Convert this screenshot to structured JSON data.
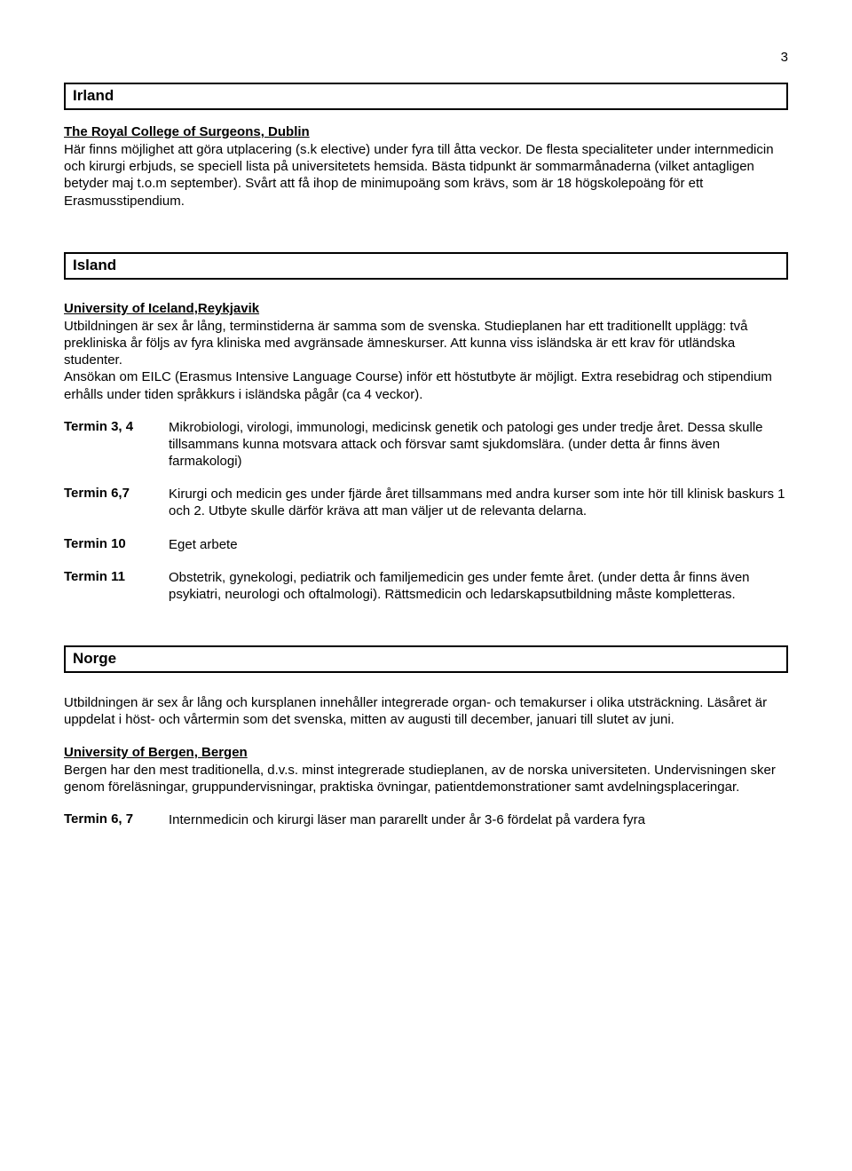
{
  "page_number": "3",
  "irland": {
    "country": "Irland",
    "uni": "The Royal College of Surgeons, Dublin",
    "body": "Här finns möjlighet att göra utplacering (s.k elective) under fyra till åtta veckor. De flesta specialiteter under internmedicin och kirurgi erbjuds, se speciell lista på universitetets hemsida. Bästa tidpunkt är sommarmånaderna (vilket antagligen betyder maj t.o.m september). Svårt att få ihop de minimupoäng som krävs, som är 18 högskolepoäng för ett Erasmusstipendium."
  },
  "island": {
    "country": "Island",
    "uni": "University of Iceland,Reykjavik",
    "body1": "Utbildningen är sex år lång, terminstiderna är samma som de svenska. Studieplanen har ett traditionellt upplägg: två prekliniska år följs av fyra kliniska med avgränsade ämneskurser. Att kunna viss isländska är ett krav för utländska studenter.",
    "body2": "Ansökan om EILC (Erasmus Intensive Language Course) inför ett höstutbyte är möjligt. Extra resebidrag och stipendium erhålls under tiden språkkurs i isländska pågår (ca 4 veckor).",
    "terms": [
      {
        "label": "Termin 3, 4",
        "text": "Mikrobiologi, virologi, immunologi, medicinsk genetik och patologi ges under tredje året. Dessa skulle tillsammans kunna motsvara attack och försvar samt sjukdomslära. (under detta år finns även farmakologi)"
      },
      {
        "label": "Termin 6,7",
        "text": "Kirurgi och medicin ges under fjärde året tillsammans med andra kurser som inte hör till klinisk baskurs 1 och 2. Utbyte skulle därför kräva att man väljer ut de relevanta delarna."
      },
      {
        "label": "Termin 10",
        "text": "Eget arbete"
      },
      {
        "label": "Termin 11",
        "text": "Obstetrik, gynekologi, pediatrik och familjemedicin ges under femte året. (under detta år finns även psykiatri, neurologi och oftalmologi). Rättsmedicin och ledarskapsutbildning måste kompletteras."
      }
    ]
  },
  "norge": {
    "country": "Norge",
    "body1": "Utbildningen är sex år lång och kursplanen innehåller integrerade organ- och temakurser i olika utsträckning. Läsåret är uppdelat i höst- och vårtermin som det svenska, mitten av augusti till december, januari till slutet av juni.",
    "uni": "University of Bergen, Bergen",
    "body2": "Bergen har den mest traditionella, d.v.s. minst integrerade studieplanen, av de norska universiteten. Undervisningen sker genom föreläsningar, gruppundervisningar, praktiska övningar, patientdemonstrationer samt avdelningsplaceringar.",
    "terms": [
      {
        "label": "Termin 6, 7",
        "text": "Internmedicin och kirurgi läser man pararellt under år 3-6 fördelat på vardera fyra"
      }
    ]
  }
}
